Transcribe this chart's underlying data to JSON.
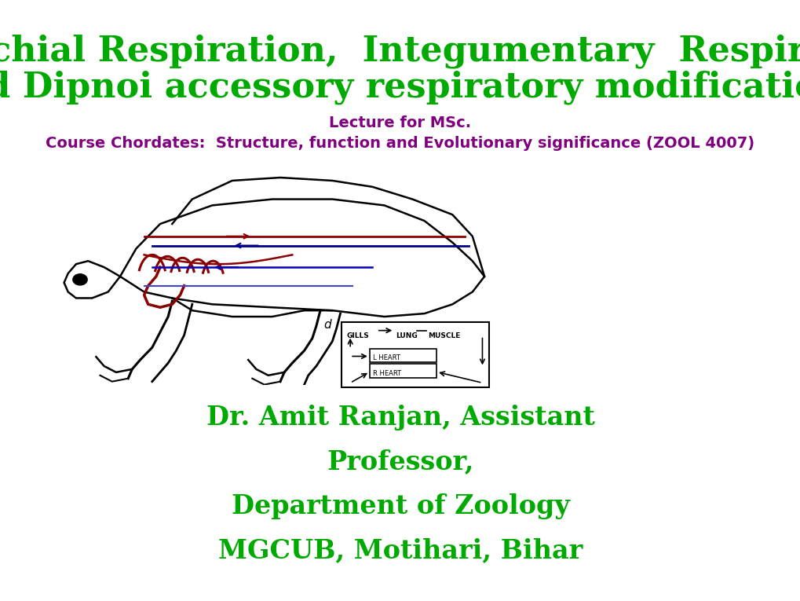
{
  "title_line1": "Branchial Respiration,  Integumentary  Respiration",
  "title_line2": "and Dipnoi accessory respiratory modifications",
  "title_color": "#00aa00",
  "subtitle_line1": "Lecture for MSc.",
  "subtitle_line2": "Course Chordates:  Structure, function and Evolutionary significance (ZOOL 4007)",
  "subtitle_color": "#800080",
  "author_lines": [
    "Dr. Amit Ranjan, Assistant",
    "Professor,",
    "Department of Zoology",
    "MGCUB, Motihari, Bihar"
  ],
  "author_color": "#00aa00",
  "background_color": "#ffffff",
  "title_fontsize": 32,
  "subtitle_fontsize": 14,
  "author_fontsize": 24,
  "fig_width": 10.2,
  "fig_height": 7.65
}
